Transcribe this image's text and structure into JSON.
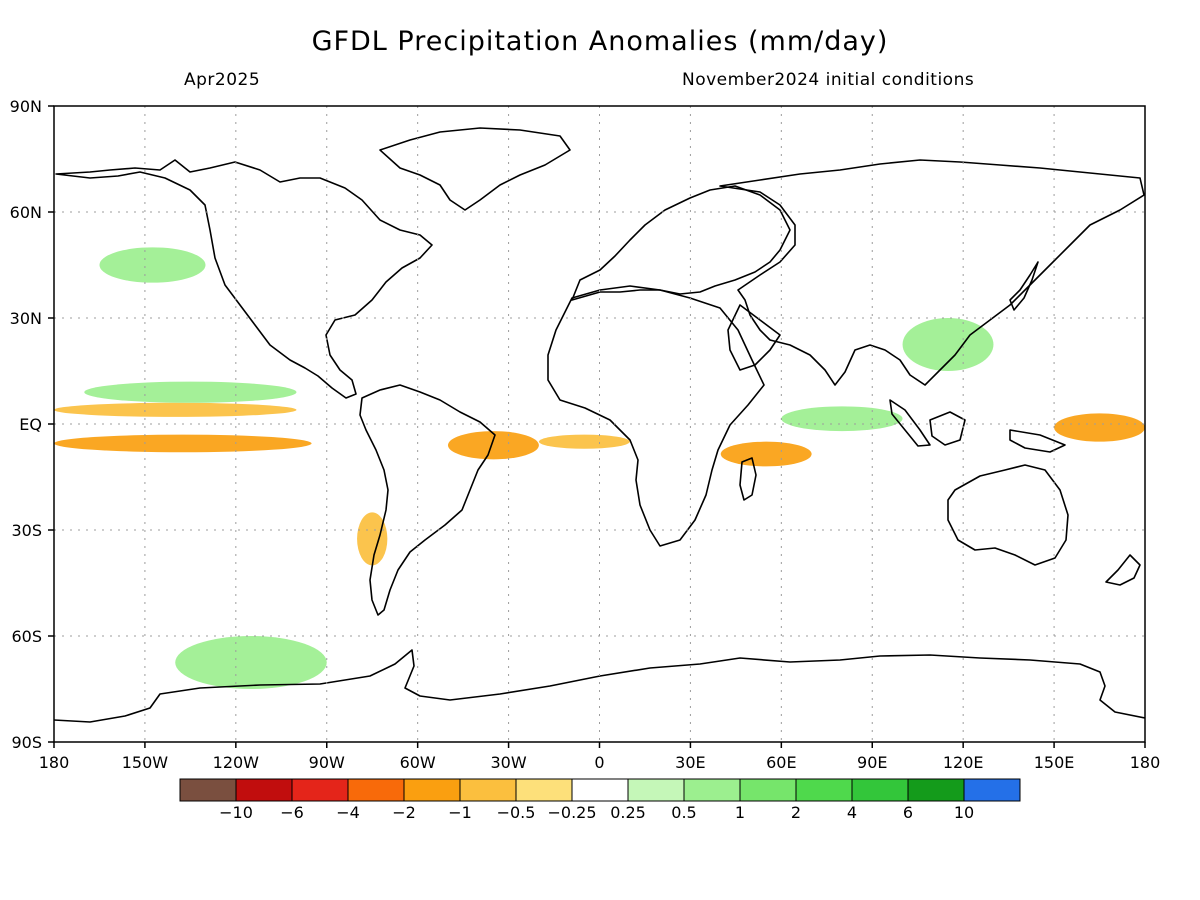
{
  "title": "GFDL Precipitation Anomalies (mm/day)",
  "subtitle_left": "Apr2025",
  "subtitle_right": "November2024 initial conditions",
  "lat_labels": [
    "90N",
    "60N",
    "30N",
    "EQ",
    "30S",
    "60S",
    "90S"
  ],
  "lon_labels": [
    "180",
    "150W",
    "120W",
    "90W",
    "60W",
    "30W",
    "0",
    "30E",
    "60E",
    "90E",
    "120E",
    "150E",
    "180"
  ],
  "lat_values": [
    90,
    60,
    30,
    0,
    -30,
    -60,
    -90
  ],
  "lon_values": [
    -180,
    -150,
    -120,
    -90,
    -60,
    -30,
    0,
    30,
    60,
    90,
    120,
    150,
    180
  ],
  "colorbar": {
    "colors": [
      "#7a4f3f",
      "#c10d0d",
      "#e4251a",
      "#f86a0a",
      "#fa9f10",
      "#fbbf3e",
      "#fde07a",
      "#ffffff",
      "#c5f7b8",
      "#9cef8f",
      "#76e56b",
      "#4fd94c",
      "#33c63a",
      "#149b1b",
      "#2470e8"
    ],
    "labels": [
      "−10",
      "−6",
      "−4",
      "−2",
      "−1",
      "−0.5",
      "−0.25",
      "0.25",
      "0.5",
      "1",
      "2",
      "4",
      "6",
      "10"
    ]
  },
  "chart_data": {
    "type": "heatmap",
    "title": "GFDL Precipitation Anomalies (mm/day)",
    "valid_time": "Apr2025",
    "initial_conditions": "November2024 initial conditions",
    "units": "mm/day",
    "xlim": [
      -180,
      180
    ],
    "ylim": [
      -90,
      90
    ],
    "grid": true,
    "contour_levels": [
      -10,
      -6,
      -4,
      -2,
      -1,
      -0.5,
      -0.25,
      0.25,
      0.5,
      1,
      2,
      4,
      6,
      10
    ],
    "anomaly_regions": [
      {
        "lat": [
          -3,
          -8
        ],
        "lon": [
          -180,
          -95
        ],
        "value": -1.5
      },
      {
        "lat": [
          6,
          2
        ],
        "lon": [
          -180,
          -100
        ],
        "value": -0.8
      },
      {
        "lat": [
          12,
          6
        ],
        "lon": [
          -170,
          -100
        ],
        "value": 0.8
      },
      {
        "lat": [
          -2,
          -10
        ],
        "lon": [
          -50,
          -20
        ],
        "value": -1.5
      },
      {
        "lat": [
          -3,
          -7
        ],
        "lon": [
          -20,
          10
        ],
        "value": -0.8
      },
      {
        "lat": [
          -5,
          -12
        ],
        "lon": [
          40,
          70
        ],
        "value": -1.5
      },
      {
        "lat": [
          5,
          -2
        ],
        "lon": [
          60,
          100
        ],
        "value": 0.8
      },
      {
        "lat": [
          3,
          -5
        ],
        "lon": [
          150,
          180
        ],
        "value": -1.5
      },
      {
        "lat": [
          -25,
          -40
        ],
        "lon": [
          -80,
          -70
        ],
        "value": -1
      },
      {
        "lat": [
          -60,
          -75
        ],
        "lon": [
          -140,
          -90
        ],
        "value": 0.5
      },
      {
        "lat": [
          50,
          40
        ],
        "lon": [
          -165,
          -130
        ],
        "value": 0.5
      },
      {
        "lat": [
          30,
          15
        ],
        "lon": [
          100,
          130
        ],
        "value": 0.5
      }
    ]
  }
}
